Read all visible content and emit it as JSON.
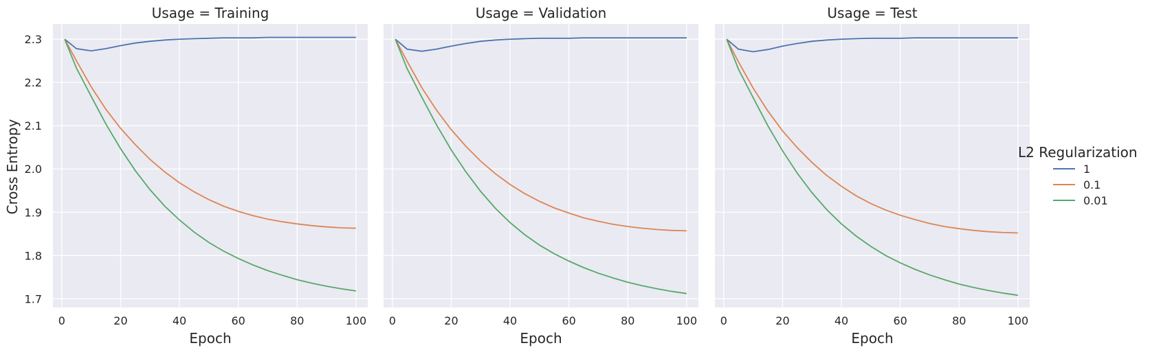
{
  "chart_data": {
    "type": "line",
    "facet_variable": "Usage",
    "facets": [
      {
        "title": "Usage = Training",
        "x": [
          1,
          5,
          10,
          15,
          20,
          25,
          30,
          35,
          40,
          45,
          50,
          55,
          60,
          65,
          70,
          75,
          80,
          85,
          90,
          95,
          100
        ],
        "series": [
          {
            "name": "1",
            "values": [
              2.3,
              2.278,
              2.273,
              2.278,
              2.285,
              2.291,
              2.295,
              2.298,
              2.3,
              2.301,
              2.302,
              2.303,
              2.303,
              2.303,
              2.304,
              2.304,
              2.304,
              2.304,
              2.304,
              2.304,
              2.304
            ]
          },
          {
            "name": "0.1",
            "values": [
              2.3,
              2.25,
              2.19,
              2.138,
              2.094,
              2.056,
              2.022,
              1.993,
              1.968,
              1.947,
              1.929,
              1.914,
              1.902,
              1.892,
              1.884,
              1.878,
              1.873,
              1.869,
              1.866,
              1.864,
              1.863
            ]
          },
          {
            "name": "0.01",
            "values": [
              2.3,
              2.233,
              2.168,
              2.104,
              2.047,
              1.996,
              1.952,
              1.914,
              1.882,
              1.854,
              1.83,
              1.81,
              1.793,
              1.778,
              1.765,
              1.754,
              1.744,
              1.736,
              1.729,
              1.723,
              1.718
            ]
          }
        ]
      },
      {
        "title": "Usage = Validation",
        "x": [
          1,
          5,
          10,
          15,
          20,
          25,
          30,
          35,
          40,
          45,
          50,
          55,
          60,
          65,
          70,
          75,
          80,
          85,
          90,
          95,
          100
        ],
        "series": [
          {
            "name": "1",
            "values": [
              2.3,
              2.277,
              2.272,
              2.277,
              2.284,
              2.29,
              2.295,
              2.298,
              2.3,
              2.301,
              2.302,
              2.302,
              2.302,
              2.303,
              2.303,
              2.303,
              2.303,
              2.303,
              2.303,
              2.303,
              2.303
            ]
          },
          {
            "name": "0.1",
            "values": [
              2.3,
              2.249,
              2.188,
              2.136,
              2.091,
              2.052,
              2.018,
              1.989,
              1.964,
              1.943,
              1.925,
              1.91,
              1.898,
              1.887,
              1.879,
              1.872,
              1.867,
              1.863,
              1.86,
              1.858,
              1.857
            ]
          },
          {
            "name": "0.01",
            "values": [
              2.3,
              2.232,
              2.166,
              2.102,
              2.044,
              1.993,
              1.948,
              1.909,
              1.876,
              1.848,
              1.824,
              1.804,
              1.787,
              1.772,
              1.759,
              1.748,
              1.738,
              1.73,
              1.723,
              1.717,
              1.712
            ]
          }
        ]
      },
      {
        "title": "Usage = Test",
        "x": [
          1,
          5,
          10,
          15,
          20,
          25,
          30,
          35,
          40,
          45,
          50,
          55,
          60,
          65,
          70,
          75,
          80,
          85,
          90,
          95,
          100
        ],
        "series": [
          {
            "name": "1",
            "values": [
              2.3,
              2.277,
              2.271,
              2.276,
              2.284,
              2.29,
              2.295,
              2.298,
              2.3,
              2.301,
              2.302,
              2.302,
              2.302,
              2.303,
              2.303,
              2.303,
              2.303,
              2.303,
              2.303,
              2.303,
              2.303
            ]
          },
          {
            "name": "0.1",
            "values": [
              2.3,
              2.248,
              2.187,
              2.134,
              2.088,
              2.049,
              2.015,
              1.985,
              1.96,
              1.938,
              1.92,
              1.905,
              1.893,
              1.883,
              1.874,
              1.867,
              1.862,
              1.858,
              1.855,
              1.853,
              1.852
            ]
          },
          {
            "name": "0.01",
            "values": [
              2.3,
              2.231,
              2.165,
              2.1,
              2.042,
              1.99,
              1.945,
              1.906,
              1.873,
              1.845,
              1.821,
              1.8,
              1.783,
              1.768,
              1.755,
              1.744,
              1.734,
              1.726,
              1.719,
              1.713,
              1.708
            ]
          }
        ]
      }
    ],
    "xlabel": "Epoch",
    "ylabel": "Cross Entropy",
    "xlim": [
      -3,
      104
    ],
    "ylim": [
      1.68,
      2.335
    ],
    "xticks": [
      0,
      20,
      40,
      60,
      80,
      100
    ],
    "yticks": [
      1.7,
      1.8,
      1.9,
      2.0,
      2.1,
      2.2,
      2.3
    ],
    "ytick_labels": [
      "1.7",
      "1.8",
      "1.9",
      "2.0",
      "2.1",
      "2.2",
      "2.3"
    ],
    "grid": true,
    "legend": {
      "title": "L2 Regularization",
      "placement": "right",
      "entries": [
        "1",
        "0.1",
        "0.01"
      ]
    },
    "colors": {
      "1": "#4c72b0",
      "0.1": "#dd8452",
      "0.01": "#55a868",
      "panel_background": "#eaeaf2",
      "grid": "#ffffff"
    }
  }
}
